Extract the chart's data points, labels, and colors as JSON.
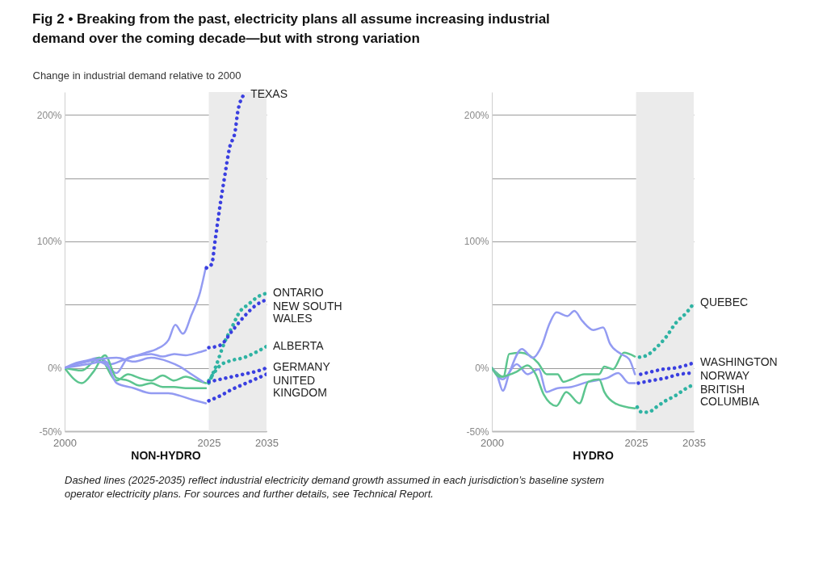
{
  "chart_data": [
    {
      "type": "line",
      "title": "Fig 2  •  Breaking from the past, electricity plans all assume increasing industrial demand over the coming decade—but with strong variation",
      "ylabel": "Change in industrial demand relative to 2000",
      "xlabel": "NON-HYDRO",
      "annotations": [
        "Dashed lines (2025-2035) reflect industrial electricity demand growth assumed in each jurisdiction’s baseline system operator electricity plans. For sources and further details, see Technical Report."
      ],
      "xlim": [
        2000,
        2035
      ],
      "xticks": [
        2000,
        2025,
        2035
      ],
      "ylim": [
        -50,
        218
      ],
      "yticks": [
        {
          "value": -50,
          "label": "-50%"
        },
        {
          "value": 0,
          "label": "0%"
        },
        {
          "value": 50,
          "label": null
        },
        {
          "value": 100,
          "label": "100%"
        },
        {
          "value": 150,
          "label": null
        },
        {
          "value": 200,
          "label": "200%"
        }
      ],
      "grid": "y",
      "legend": false,
      "marker": "none",
      "bands": [
        {
          "axis": "x",
          "from": 2025,
          "to": 2035,
          "color": "#ebebeb"
        }
      ],
      "series": [
        {
          "color": "#939bf2",
          "line_style": "solid",
          "x": [
            2000,
            2002,
            2004,
            2006,
            2008,
            2010,
            2012,
            2014,
            2016,
            2018,
            2019.2,
            2020.5,
            2022,
            2023.5,
            2024.5
          ],
          "values": [
            0,
            4,
            6,
            8,
            3,
            6,
            9,
            12,
            15,
            22,
            34,
            27,
            42,
            60,
            80
          ]
        },
        {
          "name": "TEXAS",
          "color": "#3a3fe0",
          "line_style": "dotted",
          "x": [
            2024.6,
            2025.5,
            2026.1,
            2027,
            2027.7,
            2028.6,
            2029.6,
            2030,
            2031.1
          ],
          "values": [
            79,
            82,
            101,
            130,
            150,
            174,
            188,
            202,
            216
          ]
        },
        {
          "color": "#5cc58f",
          "line_style": "solid",
          "x": [
            2000,
            2003,
            2006,
            2009,
            2011,
            2013,
            2015,
            2017,
            2019,
            2021,
            2023,
            2024.5
          ],
          "values": [
            0,
            -2,
            8,
            -10,
            -5,
            -8,
            -10,
            -6,
            -10,
            -7,
            -10,
            -12
          ]
        },
        {
          "name": "ONTARIO",
          "color": "#2fb3a3",
          "line_style": "dotted",
          "x": [
            2025,
            2026.2,
            2027.7,
            2029.1,
            2030.3,
            2031.8,
            2033.8,
            2035
          ],
          "values": [
            -12,
            1,
            20,
            33,
            44,
            50,
            57,
            59
          ]
        },
        {
          "color": "#939bf2",
          "line_style": "solid",
          "x": [
            2000,
            2003,
            2005,
            2007,
            2009,
            2011,
            2013,
            2015,
            2017,
            2019,
            2021,
            2023,
            2024.5
          ],
          "values": [
            0,
            4,
            6,
            3,
            -4,
            8,
            10,
            11,
            9,
            11,
            10,
            12,
            14
          ]
        },
        {
          "name": "NEW SOUTH WALES",
          "color": "#3a3fe0",
          "line_style": "dotted",
          "x": [
            2025,
            2027,
            2029,
            2031,
            2033,
            2035
          ],
          "values": [
            16,
            18,
            29,
            40,
            49,
            54
          ]
        },
        {
          "color": "#5cc58f",
          "line_style": "solid",
          "x": [
            2000,
            2003,
            2005,
            2007,
            2009,
            2011,
            2013,
            2015,
            2017,
            2019,
            2021,
            2024.5
          ],
          "values": [
            0,
            -12,
            -3,
            10,
            -8,
            -10,
            -14,
            -12,
            -15,
            -15,
            -16,
            -16
          ]
        },
        {
          "name": "ALBERTA",
          "color": "#2fb3a3",
          "line_style": "dotted",
          "x": [
            2025,
            2027,
            2029,
            2031,
            2033,
            2035
          ],
          "values": [
            -10,
            2,
            6,
            8,
            12,
            17
          ]
        },
        {
          "color": "#939bf2",
          "line_style": "solid",
          "x": [
            2000,
            2003,
            2006,
            2009,
            2012,
            2015,
            2018,
            2020,
            2022,
            2024
          ],
          "values": [
            0,
            4,
            7,
            8,
            5,
            8,
            5,
            1,
            -5,
            -11
          ]
        },
        {
          "name": "GERMANY",
          "color": "#3a3fe0",
          "line_style": "dotted",
          "x": [
            2025,
            2027,
            2029,
            2031,
            2033,
            2035
          ],
          "values": [
            -11,
            -9,
            -7,
            -5,
            -3,
            0
          ]
        },
        {
          "color": "#939bf2",
          "line_style": "solid",
          "x": [
            2000,
            2004,
            2007,
            2009,
            2012,
            2015,
            2018,
            2020,
            2022,
            2024.5
          ],
          "values": [
            0,
            3,
            5,
            -12,
            -16,
            -20,
            -20,
            -22,
            -25,
            -28
          ]
        },
        {
          "name": "UNITED KINGDOM",
          "color": "#3a3fe0",
          "line_style": "dotted",
          "x": [
            2025,
            2027,
            2029,
            2031,
            2033,
            2035
          ],
          "values": [
            -26,
            -22,
            -17,
            -13,
            -9,
            -5
          ]
        }
      ]
    },
    {
      "type": "line",
      "xlabel": "HYDRO",
      "xlim": [
        2000,
        2035
      ],
      "xticks": [
        2000,
        2025,
        2035
      ],
      "ylim": [
        -50,
        218
      ],
      "yticks": [
        {
          "value": -50,
          "label": "-50%"
        },
        {
          "value": 0,
          "label": "0%"
        },
        {
          "value": 50,
          "label": null
        },
        {
          "value": 100,
          "label": "100%"
        },
        {
          "value": 150,
          "label": null
        },
        {
          "value": 200,
          "label": "200%"
        }
      ],
      "grid": "y",
      "legend": false,
      "marker": "none",
      "bands": [
        {
          "axis": "x",
          "from": 2025,
          "to": 2035,
          "color": "#ebebeb"
        }
      ],
      "series": [
        {
          "color": "#5cc58f",
          "line_style": "solid",
          "x": [
            2000,
            2002,
            2003,
            2005,
            2008,
            2009.5,
            2011.4,
            2012.4,
            2013.8,
            2016,
            2018.6,
            2019.5,
            2021,
            2022.9,
            2024.8
          ],
          "values": [
            0,
            -7,
            11,
            12,
            4,
            -5,
            -5,
            -11,
            -9,
            -5,
            -5,
            1,
            -1,
            12,
            9
          ]
        },
        {
          "name": "QUEBEC",
          "color": "#2fb3a3",
          "line_style": "dotted",
          "x": [
            2025.6,
            2026.9,
            2028.5,
            2030.3,
            2031.8,
            2033.8,
            2035
          ],
          "values": [
            8.5,
            10,
            16,
            25,
            35,
            44,
            51
          ]
        },
        {
          "color": "#939bf2",
          "line_style": "solid",
          "x": [
            2000,
            2001,
            2001.9,
            2003.1,
            2005.2,
            2007.1,
            2008.6,
            2010,
            2011.2,
            2013.1,
            2014.3,
            2015.7,
            2017.6,
            2019.3,
            2020.5,
            2022.4,
            2023.8,
            2024.8
          ],
          "values": [
            0,
            -7,
            -18,
            -3,
            15,
            8,
            17,
            35,
            44,
            41,
            45,
            37,
            30,
            32,
            19,
            11,
            7,
            -5
          ]
        },
        {
          "name": "WASHINGTON",
          "color": "#3a3fe0",
          "line_style": "dotted",
          "x": [
            2025.8,
            2027.7,
            2029.7,
            2031.8,
            2035
          ],
          "values": [
            -5,
            -3,
            -1,
            0,
            4
          ]
        },
        {
          "color": "#939bf2",
          "line_style": "solid",
          "x": [
            2000,
            2001.9,
            2004.3,
            2006.2,
            2008.1,
            2009.5,
            2011.4,
            2013.8,
            2016.7,
            2020,
            2021.9,
            2023.8,
            2024.8
          ],
          "values": [
            0,
            -9,
            3,
            -5,
            -1,
            -19,
            -16,
            -15,
            -11,
            -8,
            -4,
            -12,
            -12
          ]
        },
        {
          "name": "NORWAY",
          "color": "#3a3fe0",
          "line_style": "dotted",
          "x": [
            2025.4,
            2027.7,
            2030.1,
            2032.6,
            2035
          ],
          "values": [
            -12,
            -10,
            -8,
            -5,
            -4
          ]
        },
        {
          "color": "#5cc58f",
          "line_style": "solid",
          "x": [
            2000,
            2001.4,
            2004.3,
            2006.2,
            2007.6,
            2009,
            2011.2,
            2012.9,
            2015.2,
            2016.7,
            2018.6,
            2019.5,
            2021.4,
            2024.8
          ],
          "values": [
            0,
            -7,
            -3,
            2,
            -5,
            -21,
            -30,
            -19,
            -28,
            -11,
            -9,
            -19,
            -28,
            -32
          ]
        },
        {
          "name": "BRITISH COLUMBIA",
          "color": "#2fb3a3",
          "line_style": "dotted",
          "x": [
            2025.2,
            2026,
            2027.1,
            2028.5,
            2030.1,
            2031.8,
            2033.4,
            2035
          ],
          "values": [
            -31,
            -35,
            -35,
            -31,
            -26,
            -22,
            -17,
            -13
          ]
        }
      ]
    }
  ]
}
